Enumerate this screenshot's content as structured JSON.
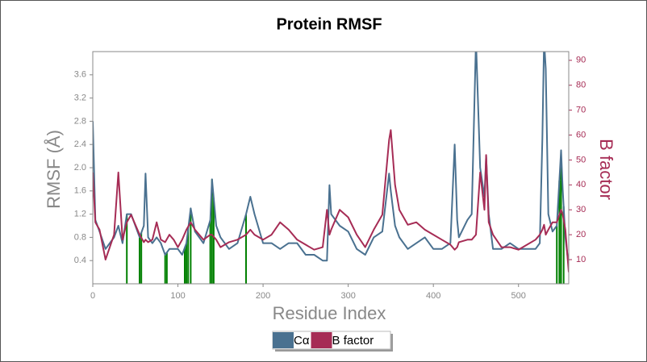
{
  "chart_data": {
    "type": "line",
    "title": "Protein RMSF",
    "x_label": "Residue Index",
    "y_label": "RMSF (Å)",
    "y2_label": "B factor",
    "x": [
      0,
      3,
      8,
      15,
      20,
      25,
      30,
      35,
      40,
      45,
      50,
      55,
      60,
      62,
      65,
      70,
      75,
      80,
      85,
      90,
      95,
      100,
      105,
      110,
      115,
      120,
      130,
      138,
      140,
      145,
      150,
      160,
      170,
      180,
      185,
      190,
      200,
      210,
      220,
      230,
      240,
      250,
      260,
      270,
      275,
      278,
      280,
      290,
      300,
      310,
      320,
      330,
      340,
      348,
      350,
      355,
      360,
      370,
      380,
      390,
      400,
      410,
      420,
      425,
      428,
      430,
      440,
      445,
      450,
      455,
      460,
      462,
      465,
      470,
      480,
      490,
      500,
      510,
      520,
      525,
      528,
      530,
      532,
      535,
      540,
      545,
      550,
      552,
      555,
      559
    ],
    "series": [
      {
        "name": "Cα",
        "color": "#4a7190",
        "axis": "y",
        "values": [
          2.8,
          1.1,
          0.9,
          0.6,
          0.7,
          0.8,
          1.0,
          0.7,
          1.2,
          1.2,
          1.0,
          0.8,
          1.0,
          1.9,
          0.8,
          0.7,
          0.8,
          0.7,
          0.5,
          0.6,
          0.6,
          0.6,
          0.5,
          0.7,
          1.3,
          0.9,
          0.7,
          1.1,
          1.8,
          1.0,
          0.8,
          0.6,
          0.7,
          1.2,
          1.5,
          1.2,
          0.7,
          0.7,
          0.6,
          0.7,
          0.7,
          0.5,
          0.5,
          0.4,
          0.4,
          1.7,
          1.2,
          1.0,
          0.9,
          0.6,
          0.5,
          0.8,
          0.9,
          1.9,
          1.6,
          1.0,
          0.8,
          0.6,
          0.7,
          0.8,
          0.6,
          0.6,
          0.7,
          2.4,
          1.1,
          0.8,
          1.1,
          1.2,
          4.2,
          2.0,
          1.5,
          2.2,
          1.2,
          0.6,
          0.6,
          0.7,
          0.6,
          0.6,
          0.6,
          0.7,
          2.5,
          4.2,
          3.7,
          1.2,
          0.9,
          1.0,
          2.3,
          1.6,
          0.8,
          0.3
        ]
      },
      {
        "name": "B factor",
        "color": "#a62c55",
        "axis": "y2",
        "values": [
          45,
          25,
          22,
          10,
          15,
          20,
          45,
          18,
          25,
          28,
          24,
          20,
          17,
          18,
          17,
          18,
          25,
          18,
          17,
          20,
          18,
          15,
          18,
          22,
          25,
          22,
          18,
          20,
          20,
          18,
          15,
          17,
          18,
          20,
          22,
          20,
          18,
          20,
          25,
          22,
          18,
          16,
          14,
          15,
          30,
          20,
          22,
          30,
          27,
          20,
          15,
          22,
          28,
          58,
          62,
          40,
          30,
          24,
          25,
          22,
          20,
          18,
          16,
          14,
          15,
          17,
          18,
          18,
          20,
          45,
          30,
          52,
          25,
          20,
          15,
          15,
          14,
          16,
          18,
          20,
          22,
          24,
          20,
          22,
          25,
          25,
          30,
          28,
          22,
          5
        ]
      }
    ],
    "highlights": {
      "color": "#008000",
      "x": [
        40,
        55,
        57,
        85,
        87,
        108,
        110,
        112,
        115,
        138,
        140,
        142,
        180,
        545,
        548,
        550,
        553
      ]
    },
    "xlim": [
      0,
      559
    ],
    "xticks": [
      0,
      100,
      200,
      300,
      400,
      500
    ],
    "ylim": [
      0,
      4.0
    ],
    "yticks": [
      0.4,
      0.8,
      1.2,
      1.6,
      {
        "value": 2,
        "label": "2.0"
      },
      2.4,
      2.8,
      3.2,
      3.6
    ],
    "y2lim": [
      0.3,
      93.5
    ],
    "y2ticks": [
      10,
      20,
      30,
      40,
      50,
      60,
      70,
      80,
      90
    ],
    "legend": "bottom-center"
  }
}
